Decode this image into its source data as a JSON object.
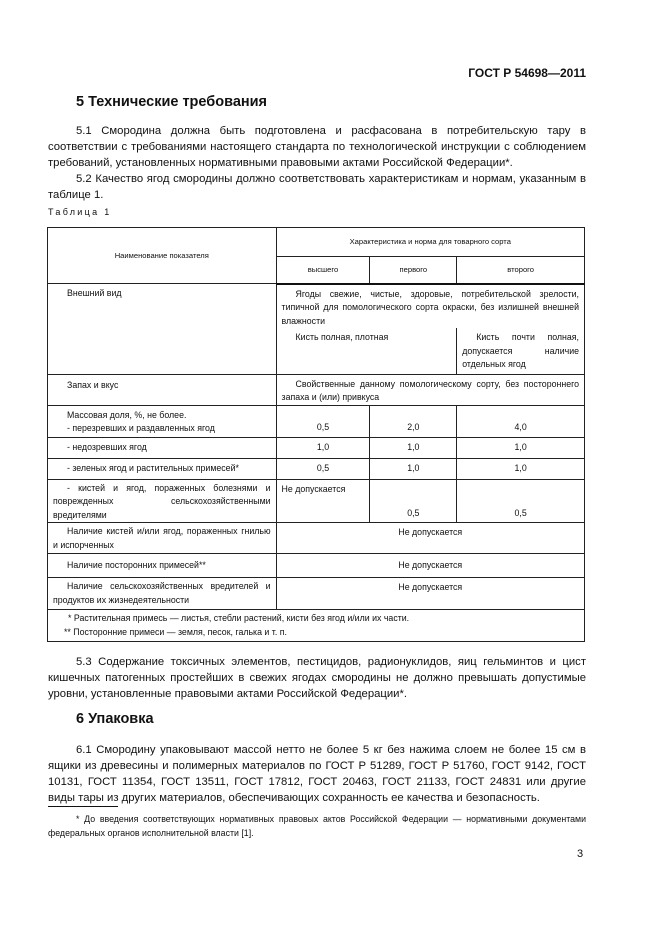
{
  "header": {
    "doc_id": "ГОСТ Р 54698—2011"
  },
  "section5": {
    "title": "5 Технические требования",
    "p51": "5.1 Смородина должна быть подготовлена и расфасована в потребительскую тару в соответствии с требованиями настоящего стандарта по технологической инструкции с соблюдением требований, установленных нормативными правовыми актами Российской Федерации*.",
    "p52": "5.2 Качество ягод смородины должно соответствовать характеристикам и нормам, указанным в таблице 1.",
    "p53": "5.3 Содержание токсичных элементов, пестицидов, радионуклидов, яиц гельминтов и цист кишечных патогенных простейших в свежих ягодах смородины не должно превышать допустимые уровни, установленные правовыми актами Российской Федерации*."
  },
  "table": {
    "caption": "Таблица 1",
    "col_name": "Наименование показателя",
    "col_group": "Характеристика и норма для товарного сорта",
    "grades": [
      "высшего",
      "первого",
      "второго"
    ],
    "appearance": {
      "label": "Внешний вид",
      "common": "Ягоды свежие, чистые, здоровые, потребительской зрелости, типичной для помологического сорта окраски, без излишней внешней влажности",
      "top_grades": "Кисть полная, плотная",
      "second": "Кисть почти полная, допускается наличие отдельных ягод"
    },
    "smell": {
      "label": "Запах и вкус",
      "value": "Свойственные данному помологическому сорту, без постороннего запаха и (или) привкуса"
    },
    "mass_heading": "Массовая доля, %, не более.",
    "mass_rows": [
      {
        "label": "- перезревших и раздавленных ягод",
        "values": [
          "0,5",
          "2,0",
          "4,0"
        ]
      },
      {
        "label": "- недозревших ягод",
        "values": [
          "1,0",
          "1,0",
          "1,0"
        ]
      },
      {
        "label": "- зеленых ягод и растительных примесей*",
        "values": [
          "0,5",
          "1,0",
          "1,0"
        ]
      },
      {
        "label": "- кистей и ягод, пораженных болезнями и поврежденных сельскохозяйственными вредителями",
        "values": [
          "Не допускается",
          "0,5",
          "0,5"
        ]
      }
    ],
    "span_rows": [
      {
        "label": "Наличие кистей и/или ягод, пораженных гнилью и испорченных",
        "value": "Не допускается"
      },
      {
        "label": "Наличие посторонних примесей**",
        "value": "Не допускается"
      },
      {
        "label": "Наличие сельскохозяйственных вредителей и продуктов их жизнедеятельности",
        "value": "Не допускается"
      }
    ],
    "notes": [
      "* Растительная примесь — листья, стебли растений, кисти без ягод и/или их части.",
      "** Посторонние примеси — земля, песок, галька и т. п."
    ]
  },
  "section6": {
    "title": "6 Упаковка",
    "p61": "6.1 Смородину упаковывают массой нетто не более 5 кг без нажима слоем не более 15 см в ящики из древесины и полимерных материалов по ГОСТ Р 51289, ГОСТ Р 51760, ГОСТ 9142, ГОСТ 10131, ГОСТ 11354, ГОСТ 13511, ГОСТ 17812, ГОСТ 20463, ГОСТ 21133, ГОСТ 24831 или другие виды тары из других материалов, обеспечивающих сохранность ее качества и безопасность."
  },
  "footnote": "* До введения соответствующих нормативных правовых актов Российской Федерации — нормативными документами федеральных органов исполнительной власти [1].",
  "page_number": "3"
}
